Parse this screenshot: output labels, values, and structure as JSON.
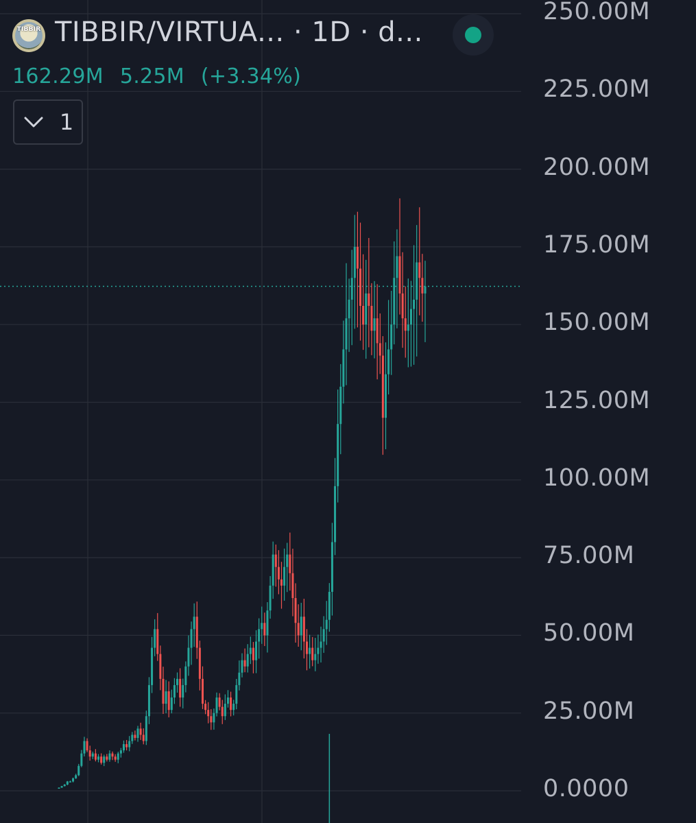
{
  "header": {
    "title": "TIBBIR/VIRTUA... · 1D · d...",
    "avatar_text": "TIBBIR",
    "status_color": "#13a386"
  },
  "price": {
    "last": "162.29M",
    "change": "5.25M",
    "change_pct": "(+3.34%)",
    "color": "#26a69a"
  },
  "indicators_button": {
    "count": "1",
    "icon": "chevron-down-icon"
  },
  "colors": {
    "up": "#26a69a",
    "down": "#ef5350",
    "background": "#161a25",
    "grid": "#2a2e39",
    "price_line": "#26a69a"
  },
  "chart_data": {
    "type": "candlestick",
    "interval": "1D",
    "y_ticks": [
      "250.00M",
      "225.00M",
      "200.00M",
      "175.00M",
      "150.00M",
      "125.00M",
      "100.00M",
      "75.00M",
      "50.00M",
      "25.00M",
      "0.0000"
    ],
    "ylim": [
      0,
      250
    ],
    "y_unit": "M",
    "last_price": 162.29,
    "close_series": [
      1,
      1.5,
      2,
      3,
      3,
      4,
      5,
      8,
      12,
      16,
      13,
      11,
      12,
      10,
      11,
      9,
      11,
      10,
      12,
      11,
      10,
      12,
      13,
      15,
      14,
      16,
      18,
      17,
      20,
      18,
      16,
      24,
      34,
      46,
      52,
      44,
      36,
      28,
      32,
      26,
      30,
      34,
      36,
      30,
      34,
      40,
      46,
      52,
      56,
      46,
      36,
      28,
      26,
      24,
      22,
      25,
      30,
      27,
      24,
      28,
      30,
      26,
      28,
      34,
      38,
      42,
      40,
      44,
      46,
      42,
      48,
      52,
      54,
      50,
      58,
      66,
      76,
      72,
      68,
      66,
      72,
      76,
      70,
      62,
      54,
      50,
      56,
      48,
      44,
      46,
      42,
      44,
      46,
      48,
      52,
      55,
      64,
      80,
      98,
      118,
      130,
      142,
      152,
      158,
      165,
      175,
      168,
      156,
      150,
      160,
      156,
      148,
      152,
      144,
      140,
      120,
      134,
      142,
      150,
      165,
      172,
      160,
      152,
      148,
      150,
      155,
      158,
      170,
      165,
      160,
      162.29
    ],
    "volume_spikes": [
      {
        "index": 96,
        "value": 0.5
      }
    ]
  }
}
